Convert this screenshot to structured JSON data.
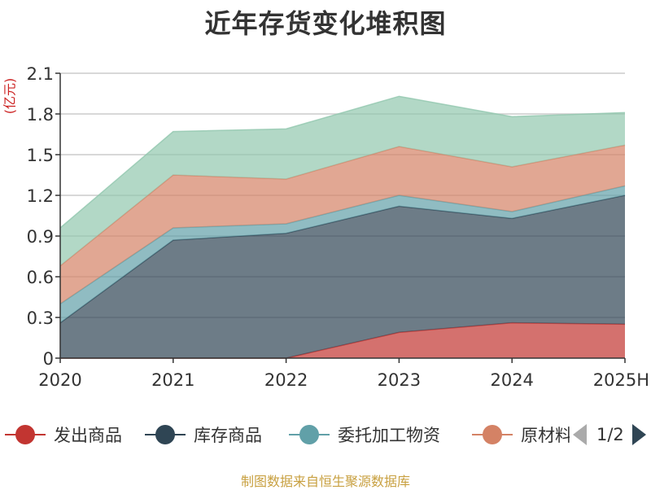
{
  "title": "近年存货变化堆积图",
  "unit_label": "(亿元)",
  "source": "制图数据来自恒生聚源数据库",
  "legend_page": "1/2",
  "chart_data": {
    "type": "area",
    "stacked": true,
    "title": "近年存货变化堆积图",
    "ylabel": "(亿元)",
    "categories": [
      "2020",
      "2021",
      "2022",
      "2023",
      "2024",
      "2025H"
    ],
    "yticks": [
      "0",
      "0.3",
      "0.6",
      "0.9",
      "1.2",
      "1.5",
      "1.8",
      "2.1"
    ],
    "ylim": [
      0,
      2.1
    ],
    "grid": true,
    "legend_position": "bottom",
    "series": [
      {
        "name": "发出商品",
        "color": "#c23531",
        "values": [
          0,
          0,
          0,
          0.19,
          0.26,
          0.25
        ]
      },
      {
        "name": "库存商品",
        "color": "#2f4554",
        "values": [
          0.26,
          0.87,
          0.92,
          0.93,
          0.77,
          0.95
        ]
      },
      {
        "name": "委托加工物资",
        "color": "#61a0a8",
        "values": [
          0.14,
          0.09,
          0.07,
          0.08,
          0.05,
          0.07
        ]
      },
      {
        "name": "原材料",
        "color": "#d48265",
        "values": [
          0.28,
          0.39,
          0.33,
          0.36,
          0.33,
          0.3
        ]
      },
      {
        "name": "",
        "color": "#91c7ae",
        "values": [
          0.28,
          0.32,
          0.37,
          0.37,
          0.37,
          0.24
        ]
      }
    ]
  }
}
